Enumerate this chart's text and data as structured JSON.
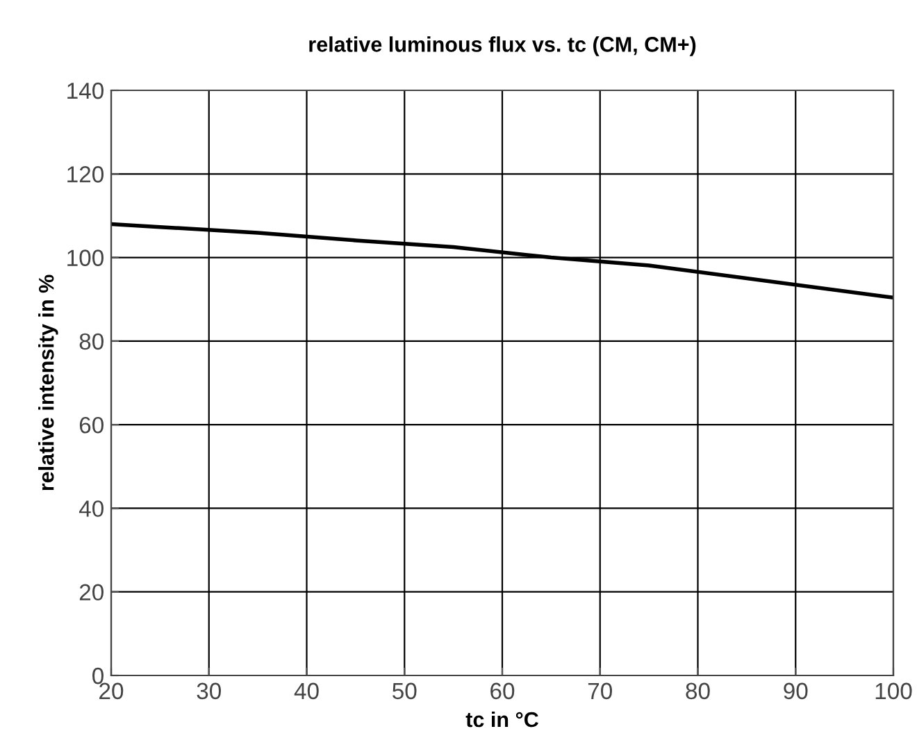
{
  "chart_data": {
    "type": "line",
    "title": "relative luminous flux vs. tc (CM, CM+)",
    "xlabel": "tc in °C",
    "ylabel": "relative intensity in %",
    "x": [
      20,
      25,
      35,
      45,
      55,
      65,
      75,
      100
    ],
    "series": [
      {
        "color": "#000000",
        "values": [
          108,
          107.3,
          105.9,
          104.1,
          102.5,
          100,
          98.1,
          90.4
        ]
      }
    ],
    "xlim": [
      20,
      100
    ],
    "ylim": [
      0,
      140
    ],
    "xticks": [
      20,
      30,
      40,
      50,
      60,
      70,
      80,
      90,
      100
    ],
    "yticks": [
      0,
      20,
      40,
      60,
      80,
      100,
      120,
      140
    ],
    "grid": true
  }
}
